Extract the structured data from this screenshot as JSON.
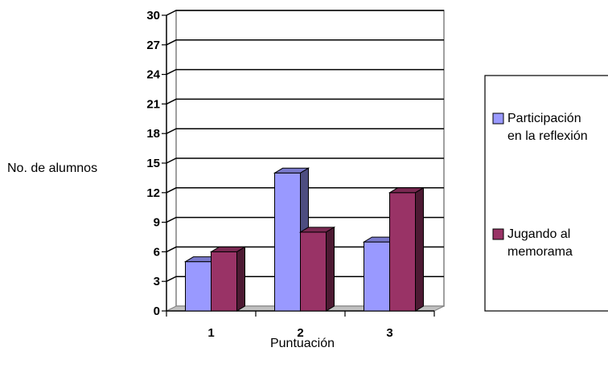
{
  "chart_data": {
    "type": "bar",
    "categories": [
      "1",
      "2",
      "3"
    ],
    "series": [
      {
        "name": "Participación en la reflexión",
        "legend_lines": [
          "Participación",
          "en la reflexión"
        ],
        "values": [
          5,
          14,
          7
        ],
        "color": "#9999FF"
      },
      {
        "name": "Jugando al memorama",
        "legend_lines": [
          "Jugando al",
          "memorama"
        ],
        "values": [
          6,
          8,
          12
        ],
        "color": "#993366"
      }
    ],
    "xlabel": "Puntuación",
    "ylabel": "No. de alumnos",
    "ylim": [
      0,
      30
    ],
    "yticks": [
      0,
      3,
      6,
      9,
      12,
      15,
      18,
      21,
      24,
      27,
      30
    ],
    "grid": true,
    "legend_position": "right"
  }
}
